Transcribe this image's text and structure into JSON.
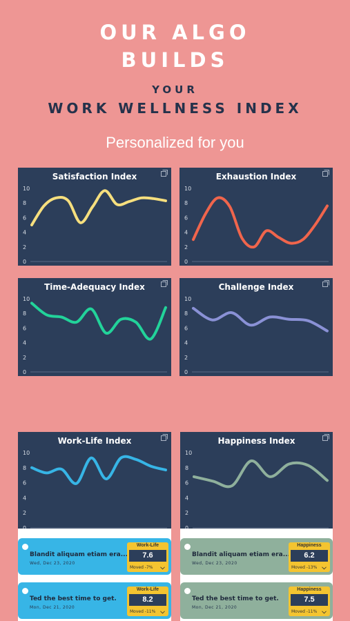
{
  "header": {
    "line1": "OUR ALGO",
    "line2": "BUILDS",
    "line3": "YOUR",
    "line4": "WORK WELLNESS INDEX",
    "subtitle": "Personalized for you"
  },
  "colors": {
    "background": "#ee9694",
    "card": "#2c3e5a",
    "satisfaction": "#f6df7e",
    "exhaustion": "#f0654c",
    "time_adequacy": "#22d39a",
    "challenge": "#8a91d6",
    "work_life": "#37b5e6",
    "happiness": "#8fb09c",
    "badge": "#f4c430"
  },
  "chart_data": [
    {
      "type": "line",
      "title": "Satisfaction Index",
      "ylim": [
        0,
        10
      ],
      "yticks": [
        "0",
        "2",
        "4",
        "6",
        "8",
        "10"
      ],
      "y": [
        5,
        7.6,
        8.7,
        8.3,
        5.3,
        7.5,
        9.7,
        7.8,
        8.2,
        8.7,
        8.6,
        8.3
      ]
    },
    {
      "type": "line",
      "title": "Exhaustion Index",
      "ylim": [
        0,
        10
      ],
      "yticks": [
        "0",
        "2",
        "4",
        "6",
        "8",
        "10"
      ],
      "y": [
        3,
        6.5,
        8.7,
        7.5,
        3.2,
        2,
        4.2,
        3.3,
        2.5,
        3,
        5,
        7.6
      ]
    },
    {
      "type": "line",
      "title": "Time-Adequacy Index",
      "ylim": [
        0,
        10
      ],
      "yticks": [
        "0",
        "2",
        "4",
        "6",
        "8",
        "10"
      ],
      "y": [
        9.4,
        7.8,
        7.5,
        6.8,
        8.6,
        5.3,
        7.2,
        6.8,
        4.5,
        8.8
      ]
    },
    {
      "type": "line",
      "title": "Challenge Index",
      "ylim": [
        0,
        10
      ],
      "yticks": [
        "0",
        "2",
        "4",
        "6",
        "8",
        "10"
      ],
      "y": [
        8.7,
        7.1,
        8.1,
        6.4,
        7.5,
        7.2,
        7,
        5.6
      ]
    },
    {
      "type": "line",
      "title": "Work-Life Index",
      "ylim": [
        0,
        10
      ],
      "yticks": [
        "0",
        "2",
        "4",
        "6",
        "8",
        "10"
      ],
      "y": [
        8,
        7.3,
        7.8,
        5.9,
        9.3,
        6.5,
        9.3,
        9.1,
        8.2,
        7.7
      ]
    },
    {
      "type": "line",
      "title": "Happiness Index",
      "ylim": [
        0,
        10
      ],
      "yticks": [
        "0",
        "2",
        "4",
        "6",
        "8",
        "10"
      ],
      "y": [
        6.8,
        6.2,
        5.6,
        8.9,
        6.8,
        8.5,
        8.3,
        6.3
      ]
    }
  ],
  "entries_left": [
    {
      "title": "Blandit aliquam etiam era...",
      "date": "Wed, Dec 23, 2020",
      "badge_label": "Work-Life",
      "value": "7.6",
      "moved": "Moved  -7%"
    },
    {
      "title": "Ted the best time to get.",
      "date": "Mon, Dec 21, 2020",
      "badge_label": "Work-Life",
      "value": "8.2",
      "moved": "Moved  -11%"
    }
  ],
  "entries_right": [
    {
      "title": "Blandit aliquam etiam era...",
      "date": "Wed, Dec 23, 2020",
      "badge_label": "Happiness",
      "value": "6.2",
      "moved": "Moved  -13%"
    },
    {
      "title": "Ted the best time to get.",
      "date": "Mon, Dec 21, 2020",
      "badge_label": "Happiness",
      "value": "7.5",
      "moved": "Moved  -11%"
    }
  ]
}
